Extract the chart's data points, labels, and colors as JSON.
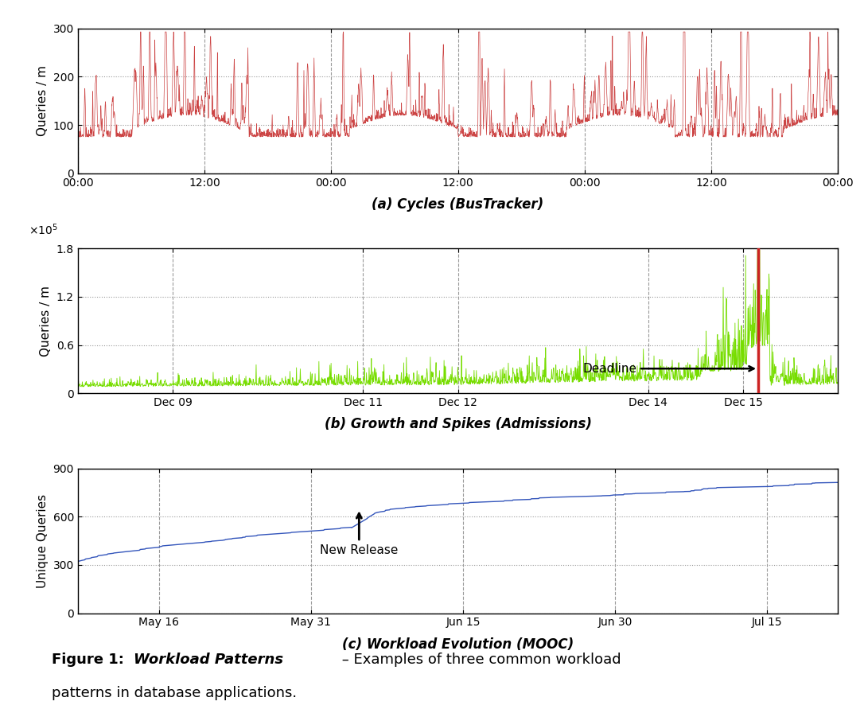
{
  "panel_a": {
    "title": "(a) Cycles (BusTracker)",
    "ylabel": "Queries / m",
    "xtick_labels": [
      "00:00",
      "12:00",
      "00:00",
      "12:00",
      "00:00",
      "12:00",
      "00:00"
    ],
    "ylim": [
      0,
      300
    ],
    "yticks": [
      0,
      100,
      200,
      300
    ],
    "color": "#cc4444"
  },
  "panel_b": {
    "title": "(b) Growth and Spikes (Admissions)",
    "ylabel": "Queries / m",
    "xtick_labels": [
      "Dec 09",
      "Dec 11",
      "Dec 12",
      "Dec 14",
      "Dec 15"
    ],
    "ylim": [
      0,
      180000
    ],
    "yticks": [
      0,
      60000,
      120000,
      180000
    ],
    "color": "#77dd00",
    "deadline_color": "#cc2222",
    "deadline_label": "Deadline"
  },
  "panel_c": {
    "title": "(c) Workload Evolution (MOOC)",
    "ylabel": "Unique Queries",
    "xtick_labels": [
      "May 16",
      "May 31",
      "Jun 15",
      "Jun 30",
      "Jul 15"
    ],
    "ylim": [
      0,
      900
    ],
    "yticks": [
      0,
      300,
      600,
      900
    ],
    "color": "#3355bb",
    "annotation": "New Release"
  },
  "background_color": "#ffffff",
  "grid_color": "#999999"
}
